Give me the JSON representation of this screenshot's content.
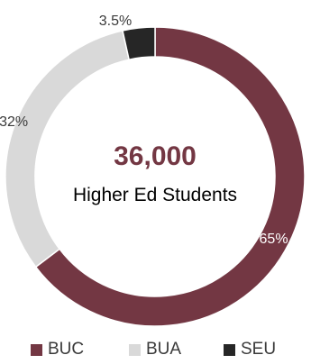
{
  "chart_data": {
    "type": "pie",
    "style": "donut",
    "center": {
      "value": "36,000",
      "label": "Higher Ed Students"
    },
    "slices": [
      {
        "name": "BUC",
        "value": 65,
        "label": "65%",
        "color": "#733743"
      },
      {
        "name": "BUA",
        "value": 32,
        "label": "32%",
        "color": "#d9d9d9"
      },
      {
        "name": "SEU",
        "value": 3.5,
        "label": "3.5%",
        "color": "#262626"
      }
    ],
    "legend_position": "bottom"
  },
  "colors": {
    "center_value": "#733743",
    "center_label": "#000000",
    "label_dark": "#3a3a3a",
    "label_light": "#ffffff"
  }
}
